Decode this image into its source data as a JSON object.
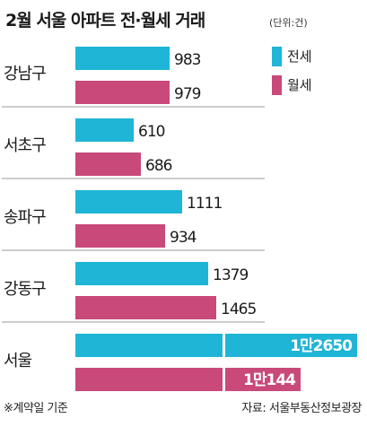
{
  "title": "2월 서울 아파트 전·월세 거래",
  "unit": "(단위:건)",
  "colors": {
    "jeonse": "#1fb5d6",
    "wolse": "#c8497a",
    "divider": "#9a9a9a"
  },
  "chart_data": {
    "type": "bar",
    "orientation": "horizontal",
    "categories": [
      "강남구",
      "서초구",
      "송파구",
      "강동구",
      "서울"
    ],
    "series": [
      {
        "name": "전세",
        "values": [
          983,
          610,
          1111,
          1379,
          12650
        ],
        "labels": [
          "983",
          "610",
          "1111",
          "1379",
          "1만2650"
        ]
      },
      {
        "name": "월세",
        "values": [
          979,
          686,
          934,
          1465,
          10144
        ],
        "labels": [
          "979",
          "686",
          "934",
          "1465",
          "1만144"
        ]
      }
    ],
    "legend_position": "top-right",
    "grid": false
  },
  "footnote": "※계약일 기준",
  "source": "자료: 서울부동산정보광장"
}
